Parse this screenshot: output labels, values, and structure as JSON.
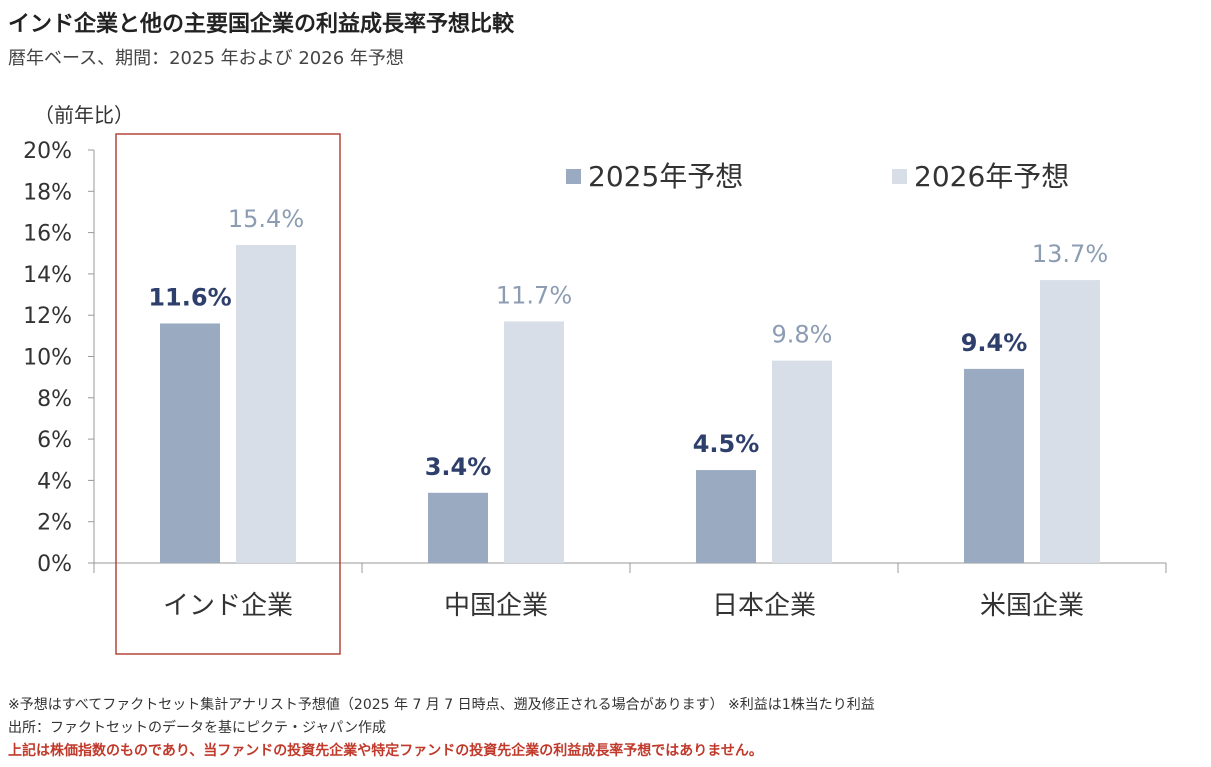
{
  "header": {
    "title": "インド企業と他の主要国企業の利益成長率予想比較",
    "subtitle": "暦年ベース、期間：2025 年および 2026 年予想"
  },
  "chart_data": {
    "type": "bar",
    "ylabel": "（前年比）",
    "ylim": [
      0,
      20
    ],
    "ytick_step": 2,
    "ytick_labels": [
      "0%",
      "2%",
      "4%",
      "6%",
      "8%",
      "10%",
      "12%",
      "14%",
      "16%",
      "18%",
      "20%"
    ],
    "categories": [
      "インド企業",
      "中国企業",
      "日本企業",
      "米国企業"
    ],
    "series": [
      {
        "name": "2025年予想",
        "values": [
          11.6,
          3.4,
          4.5,
          9.4
        ],
        "labels": [
          "11.6%",
          "3.4%",
          "4.5%",
          "9.4%"
        ],
        "color": "#9aaac0",
        "label_color": "#2e3f6b"
      },
      {
        "name": "2026年予想",
        "values": [
          15.4,
          11.7,
          9.8,
          13.7
        ],
        "labels": [
          "15.4%",
          "11.7%",
          "9.8%",
          "13.7%"
        ],
        "color": "#d8dee7",
        "label_color": "#8c9db3"
      }
    ],
    "highlight_category": "インド企業",
    "highlight_color": "#b5473a",
    "grid": false,
    "legend_position": "top-right"
  },
  "footnotes": {
    "note1": "※予想はすべてファクトセット集計アナリスト予想値（2025 年 7 月 7 日時点、遡及修正される場合があります） ※利益は1株当たり利益",
    "source": "出所：ファクトセットのデータを基にピクテ・ジャパン作成",
    "disclaimer": "上記は株価指数のものであり、当ファンドの投資先企業や特定ファンドの投資先企業の利益成長率予想ではありません。"
  }
}
